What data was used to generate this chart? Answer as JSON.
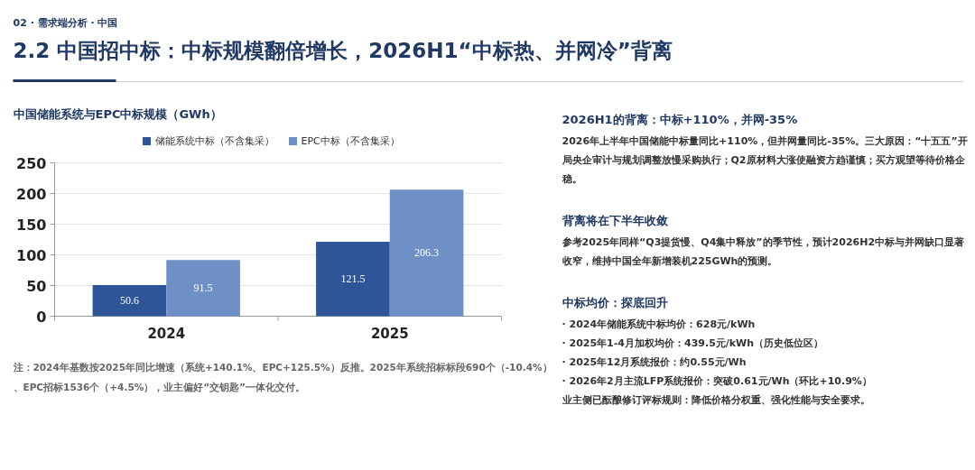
{
  "chart_data": [
    {
      "type": "other",
      "title": "2.2 中国招中标：中标规模翻倍增长，2026H1“中标热、并网冷”背离",
      "subtitle": "02 · 需求端分析 · 中国"
    },
    {
      "type": "bar",
      "title": "中国储能系统与EPC中标规模（GWh）",
      "categories": [
        "2024",
        "2025"
      ],
      "series": [
        {
          "name": "储能系统中标（不含集采）",
          "color": "#2e5597",
          "values": [
            50.6,
            121.5
          ]
        },
        {
          "name": "EPC中标（不含集采）",
          "color": "#6f8fc7",
          "values": [
            91.5,
            206.3
          ]
        }
      ],
      "ylim": [
        0,
        250
      ],
      "yticks": [
        0,
        50,
        100,
        150,
        200,
        250
      ],
      "grid": "y",
      "legend": "top",
      "data_labels": true,
      "annotations": [
        "注：2024年基数按2025年同比增速（系统+140.1%、EPC+125.5%）反推。2025年系统招标标段690个（-10.4%）、EPC招标1536个（+4.5%），业主偏好“交钥匙”一体化交付。"
      ]
    },
    {
      "type": "other",
      "title": "2026H1的背离：中标+110%，并网-35%",
      "annotations": [
        "2026年上半年中国储能中标量同比+110%，但并网量同比-35%。三大原因：“十五五”开局央企审计与规划调整放慢采购执行；Q2原材料大涨使融资方趋谨慎；买方观望等待价格企稳。"
      ]
    },
    {
      "type": "other",
      "title": "背离将在下半年收敛",
      "annotations": [
        "参考2025年同样“Q3提货慢、Q4集中释放”的季节性，预计2026H2中标与并网缺口显著收窄，维持中国全年新增装机225GWh的预测。"
      ]
    },
    {
      "type": "other",
      "title": "中标均价：探底回升",
      "annotations": [
        "· 2024年储能系统中标均价：628元/kWh",
        "· 2025年1-4月加权均价：439.5元/kWh（历史低位区）",
        "· 2025年12月系统报价：约0.55元/Wh",
        "· 2026年2月主流LFP系统报价：突破0.61元/Wh（环比+10.9%）",
        "业主侧已酝酿修订评标规则：降低价格分权重、强化性能与安全要求。"
      ]
    }
  ]
}
